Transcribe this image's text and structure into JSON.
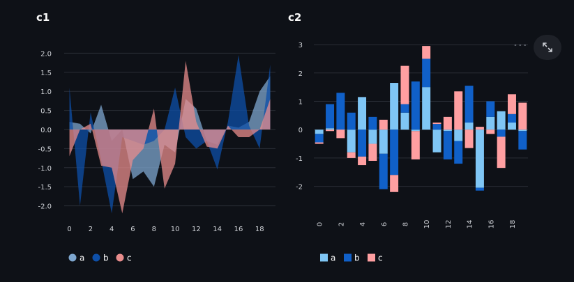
{
  "charts": [
    {
      "title": "c1"
    },
    {
      "title": "c2"
    }
  ],
  "colors": {
    "c1": {
      "a": "#7ea6cf",
      "b": "#0e4fa8",
      "c": "#e88c8c"
    },
    "c2": {
      "a": "#7fc6f5",
      "b": "#1060c8",
      "c": "#ff9fa1"
    }
  },
  "toolbar": {
    "expand_icon": "expand-icon",
    "more_icon": "more-icon"
  },
  "chart_data": [
    {
      "type": "area",
      "title": "c1",
      "x": [
        0,
        1,
        2,
        3,
        4,
        5,
        6,
        7,
        8,
        9,
        10,
        11,
        12,
        13,
        14,
        15,
        16,
        17,
        18,
        19
      ],
      "xticks": [
        0,
        2,
        4,
        6,
        8,
        10,
        12,
        14,
        16,
        18
      ],
      "yticks": [
        -2.0,
        -1.5,
        -1.0,
        -0.5,
        0.0,
        0.5,
        1.0,
        1.5,
        2.0
      ],
      "ylim": [
        -2.3,
        2.3
      ],
      "legend": "bottom-left",
      "series": [
        {
          "name": "a",
          "values": [
            0.2,
            0.15,
            -0.1,
            0.65,
            -0.3,
            0.0,
            -1.3,
            -1.1,
            -1.5,
            -0.4,
            -0.6,
            0.8,
            0.55,
            -0.3,
            -0.4,
            0.1,
            0.05,
            0.2,
            1.0,
            1.4
          ]
        },
        {
          "name": "b",
          "values": [
            1.1,
            -2.0,
            0.45,
            -0.8,
            -2.2,
            -0.2,
            -0.3,
            -0.4,
            -0.3,
            0.0,
            1.1,
            -0.2,
            -0.5,
            -0.3,
            -1.05,
            0.2,
            1.95,
            0.1,
            -0.5,
            1.7
          ]
        },
        {
          "name": "c",
          "values": [
            -0.7,
            0.0,
            0.15,
            -0.95,
            -1.0,
            -2.2,
            -0.8,
            -0.5,
            0.55,
            -1.55,
            -0.9,
            1.8,
            0.2,
            -0.45,
            -0.5,
            0.1,
            -0.2,
            -0.2,
            0.0,
            0.8
          ]
        }
      ]
    },
    {
      "type": "bar",
      "stacked": true,
      "title": "c2",
      "x": [
        0,
        1,
        2,
        3,
        4,
        5,
        6,
        7,
        8,
        9,
        10,
        11,
        12,
        13,
        14,
        15,
        16,
        17,
        18,
        19
      ],
      "xticks": [
        0,
        2,
        4,
        6,
        8,
        10,
        12,
        14,
        16,
        18
      ],
      "yticks": [
        -2,
        -1,
        0,
        1,
        2,
        3
      ],
      "ylim": [
        -2.55,
        3.1
      ],
      "legend": "bottom-left",
      "series": [
        {
          "name": "a",
          "values": [
            -0.15,
            0.05,
            0.0,
            -0.8,
            1.15,
            -0.5,
            -0.85,
            1.65,
            0.6,
            -0.05,
            1.5,
            -0.8,
            -0.05,
            -0.4,
            0.25,
            -2.05,
            0.45,
            0.65,
            0.25,
            -0.05
          ]
        },
        {
          "name": "b",
          "values": [
            -0.3,
            0.85,
            1.3,
            0.6,
            -0.95,
            0.45,
            -1.25,
            -1.6,
            0.3,
            1.7,
            1.0,
            0.2,
            -1.0,
            -0.8,
            1.3,
            -0.1,
            0.55,
            -0.25,
            0.3,
            -0.65
          ]
        },
        {
          "name": "c",
          "values": [
            -0.05,
            -0.05,
            -0.3,
            -0.2,
            -0.3,
            -0.6,
            0.35,
            -0.6,
            1.35,
            -1.0,
            0.45,
            0.05,
            0.45,
            1.35,
            -0.65,
            0.1,
            -0.15,
            -1.1,
            0.7,
            0.95
          ]
        }
      ]
    }
  ]
}
